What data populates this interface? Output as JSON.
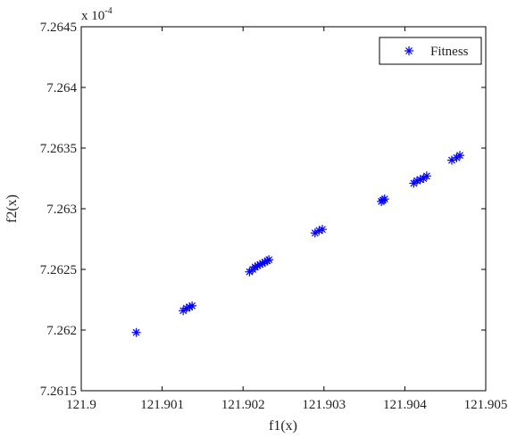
{
  "chart_data": {
    "type": "scatter",
    "marker": "*",
    "color": "#0000ff",
    "xlabel": "f1(x)",
    "ylabel": "f2(x)",
    "y_multiplier_label": "x 10",
    "y_multiplier_exponent": "-4",
    "xlim": [
      121.9,
      121.905
    ],
    "ylim": [
      7.2615,
      7.2645
    ],
    "x_ticks": [
      121.9,
      121.901,
      121.902,
      121.903,
      121.904,
      121.905
    ],
    "x_tick_labels": [
      "121.9",
      "121.901",
      "121.902",
      "121.903",
      "121.904",
      "121.905"
    ],
    "y_ticks": [
      7.2615,
      7.262,
      7.2625,
      7.263,
      7.2635,
      7.264,
      7.2645
    ],
    "y_tick_labels": [
      "7.2615",
      "7.262",
      "7.2625",
      "7.263",
      "7.2635",
      "7.264",
      "7.2645"
    ],
    "legend_position": "top-right",
    "series": [
      {
        "name": "Fitness",
        "x": [
          121.90068,
          121.90126,
          121.9013,
          121.90134,
          121.90137,
          121.90208,
          121.90212,
          121.90215,
          121.90218,
          121.90221,
          121.90224,
          121.90227,
          121.9023,
          121.90232,
          121.90289,
          121.90294,
          121.90298,
          121.90371,
          121.90373,
          121.90375,
          121.90411,
          121.90415,
          121.90419,
          121.90423,
          121.90427,
          121.90458,
          121.90464,
          121.90468
        ],
        "y": [
          7.26198,
          7.26216,
          7.26218,
          7.26219,
          7.2622,
          7.26248,
          7.2625,
          7.26252,
          7.26253,
          7.26254,
          7.26255,
          7.26256,
          7.26257,
          7.26258,
          7.2628,
          7.26282,
          7.26283,
          7.26306,
          7.26307,
          7.26308,
          7.26321,
          7.26323,
          7.26324,
          7.26325,
          7.26327,
          7.2634,
          7.26342,
          7.26344
        ]
      }
    ]
  }
}
